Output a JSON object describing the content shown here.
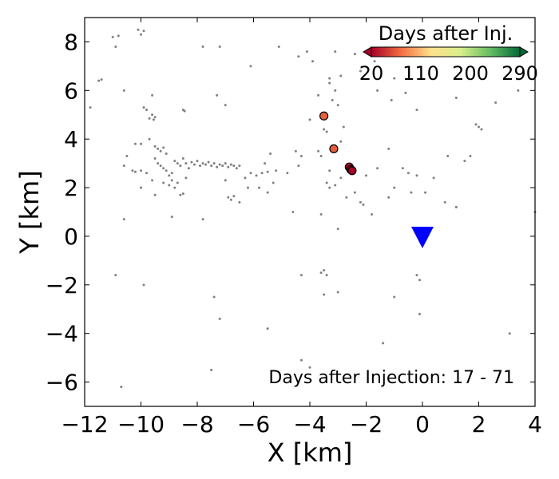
{
  "chart_data": {
    "type": "scatter",
    "xlabel": "X [km]",
    "ylabel": "Y [km]",
    "xlim": [
      -12,
      4
    ],
    "ylim": [
      -7,
      9
    ],
    "x_ticks": [
      -12,
      -10,
      -8,
      -6,
      -4,
      -2,
      0,
      2,
      4
    ],
    "x_tick_labels": [
      "−12",
      "−10",
      "−8",
      "−6",
      "−4",
      "−2",
      "0",
      "2",
      "4"
    ],
    "y_ticks": [
      -6,
      -4,
      -2,
      0,
      2,
      4,
      6,
      8
    ],
    "y_tick_labels": [
      "−6",
      "−4",
      "−2",
      "0",
      "2",
      "4",
      "6",
      "8"
    ],
    "grid": false,
    "annotation": "Days after Injection: 17 - 71",
    "colorbar": {
      "title": "Days after Inj.",
      "colormap": "RdYlGn",
      "range": [
        20,
        290
      ],
      "tick_labels": [
        "20",
        "110",
        "200",
        "290"
      ],
      "tick_values": [
        20,
        110,
        200,
        290
      ],
      "placement": "top-right",
      "colors": [
        "#a50026",
        "#f46d43",
        "#fee08b",
        "#d9ef8b",
        "#66bd63",
        "#006837"
      ]
    },
    "station": {
      "x": 0.0,
      "y": 0.0,
      "marker": "inverted-triangle",
      "color": "#0000ff"
    },
    "background_color": "#808080",
    "highlighted_events": [
      {
        "x": -3.5,
        "y": 4.95,
        "days": 55,
        "color": "#e8603c"
      },
      {
        "x": -3.15,
        "y": 3.6,
        "days": 62,
        "color": "#e45d3a"
      },
      {
        "x": -2.6,
        "y": 2.85,
        "days": 25,
        "color": "#b5122b"
      },
      {
        "x": -2.55,
        "y": 2.75,
        "days": 22,
        "color": "#a50026"
      },
      {
        "x": -2.5,
        "y": 2.7,
        "days": 20,
        "color": "#a50026"
      }
    ],
    "background_events": [
      [
        -11.0,
        8.2
      ],
      [
        -10.8,
        8.25
      ],
      [
        -10.9,
        7.8
      ],
      [
        -10.1,
        8.5
      ],
      [
        -9.9,
        8.45
      ],
      [
        -10.0,
        8.3
      ],
      [
        -11.4,
        6.45
      ],
      [
        -11.5,
        6.4
      ],
      [
        -10.6,
        6.0
      ],
      [
        -9.6,
        5.8
      ],
      [
        -11.8,
        5.3
      ],
      [
        -9.9,
        5.3
      ],
      [
        -9.8,
        5.2
      ],
      [
        -9.6,
        5.0
      ],
      [
        -9.5,
        4.9
      ],
      [
        -9.7,
        4.85
      ],
      [
        -9.55,
        4.8
      ],
      [
        -8.5,
        5.2
      ],
      [
        -8.45,
        5.15
      ],
      [
        -7.8,
        7.8
      ],
      [
        -7.2,
        7.8
      ],
      [
        -7.3,
        5.8
      ],
      [
        -7.0,
        5.4
      ],
      [
        -6.1,
        7.0
      ],
      [
        -5.1,
        7.8
      ],
      [
        -4.4,
        7.4
      ],
      [
        -9.7,
        4.0
      ],
      [
        -10.2,
        3.8
      ],
      [
        -10.0,
        3.8
      ],
      [
        -10.5,
        3.3
      ],
      [
        -10.6,
        2.9
      ],
      [
        -10.3,
        2.7
      ],
      [
        -10.2,
        2.65
      ],
      [
        -10.0,
        2.7
      ],
      [
        -9.8,
        2.6
      ],
      [
        -9.5,
        3.7
      ],
      [
        -9.4,
        3.6
      ],
      [
        -9.3,
        3.5
      ],
      [
        -9.2,
        3.65
      ],
      [
        -9.1,
        3.4
      ],
      [
        -9.5,
        3.2
      ],
      [
        -9.4,
        3.0
      ],
      [
        -9.3,
        2.9
      ],
      [
        -9.2,
        2.8
      ],
      [
        -9.1,
        2.7
      ],
      [
        -9.0,
        2.5
      ],
      [
        -8.9,
        2.6
      ],
      [
        -8.8,
        3.1
      ],
      [
        -8.7,
        3.0
      ],
      [
        -8.6,
        2.9
      ],
      [
        -8.5,
        3.2
      ],
      [
        -8.4,
        3.0
      ],
      [
        -8.3,
        2.8
      ],
      [
        -8.2,
        3.05
      ],
      [
        -8.1,
        2.95
      ],
      [
        -8.0,
        3.1
      ],
      [
        -7.9,
        2.9
      ],
      [
        -7.8,
        3.0
      ],
      [
        -7.7,
        2.95
      ],
      [
        -7.6,
        3.05
      ],
      [
        -7.5,
        2.9
      ],
      [
        -7.4,
        3.0
      ],
      [
        -7.3,
        2.85
      ],
      [
        -7.2,
        2.95
      ],
      [
        -7.1,
        2.9
      ],
      [
        -7.0,
        3.0
      ],
      [
        -6.9,
        2.85
      ],
      [
        -6.8,
        2.95
      ],
      [
        -6.7,
        2.9
      ],
      [
        -6.6,
        2.8
      ],
      [
        -6.5,
        2.9
      ],
      [
        -8.9,
        2.3
      ],
      [
        -8.8,
        2.0
      ],
      [
        -8.7,
        2.2
      ],
      [
        -8.4,
        2.4
      ],
      [
        -9.6,
        2.3
      ],
      [
        -9.2,
        2.2
      ],
      [
        -9.0,
        2.1
      ],
      [
        -8.6,
        1.7
      ],
      [
        -8.5,
        1.75
      ],
      [
        -10.0,
        2.0
      ],
      [
        -9.5,
        1.7
      ],
      [
        -7.0,
        2.3
      ],
      [
        -6.9,
        1.6
      ],
      [
        -6.8,
        1.5
      ],
      [
        -6.7,
        1.65
      ],
      [
        -6.5,
        1.4
      ],
      [
        -6.3,
        2.4
      ],
      [
        -6.1,
        2.6
      ],
      [
        -5.9,
        2.5
      ],
      [
        -5.7,
        2.6
      ],
      [
        -5.5,
        2.65
      ],
      [
        -5.3,
        2.2
      ],
      [
        -5.2,
        2.7
      ],
      [
        -5.6,
        3.0
      ],
      [
        -5.4,
        3.4
      ],
      [
        -6.2,
        2.0
      ],
      [
        -5.8,
        2.0
      ],
      [
        -5.5,
        1.8
      ],
      [
        -4.8,
        2.6
      ],
      [
        -4.4,
        2.9
      ],
      [
        -4.3,
        3.3
      ],
      [
        -4.5,
        3.5
      ],
      [
        -3.6,
        3.3
      ],
      [
        -3.7,
        3.5
      ],
      [
        -3.3,
        2.7
      ],
      [
        -3.4,
        2.2
      ],
      [
        -3.3,
        2.0
      ],
      [
        -3.1,
        2.1
      ],
      [
        -2.9,
        2.4
      ],
      [
        -2.7,
        1.6
      ],
      [
        -2.2,
        1.4
      ],
      [
        -2.0,
        2.5
      ],
      [
        -1.6,
        2.8
      ],
      [
        -1.2,
        1.6
      ],
      [
        -1.0,
        2.0
      ],
      [
        -0.5,
        2.6
      ],
      [
        -0.7,
        2.8
      ],
      [
        -0.4,
        1.8
      ],
      [
        -0.2,
        2.5
      ],
      [
        0.1,
        1.8
      ],
      [
        0.4,
        2.4
      ],
      [
        0.8,
        1.4
      ],
      [
        0.9,
        3.3
      ],
      [
        1.2,
        1.2
      ],
      [
        1.5,
        3.1
      ],
      [
        1.7,
        3.3
      ],
      [
        2.1,
        4.4
      ],
      [
        1.9,
        4.6
      ],
      [
        2.0,
        4.5
      ],
      [
        1.2,
        5.7
      ],
      [
        -0.2,
        5.2
      ],
      [
        -1.1,
        5.6
      ],
      [
        -1.0,
        6.5
      ],
      [
        -0.6,
        5.9
      ],
      [
        -1.6,
        7.7
      ],
      [
        -1.7,
        7.2
      ],
      [
        -2.2,
        6.8
      ],
      [
        -1.6,
        6.0
      ],
      [
        -2.4,
        7.5
      ],
      [
        -2.9,
        6.6
      ],
      [
        -3.1,
        7.6
      ],
      [
        -3.3,
        6.3
      ],
      [
        -3.1,
        6.0
      ],
      [
        -3.2,
        5.6
      ],
      [
        -3.0,
        5.4
      ],
      [
        -3.7,
        5.8
      ],
      [
        -4.1,
        7.6
      ],
      [
        -3.9,
        7.2
      ],
      [
        -3.3,
        6.5
      ],
      [
        -3.5,
        4.4
      ],
      [
        -3.4,
        4.3
      ],
      [
        -2.9,
        3.9
      ],
      [
        -4.0,
        4.8
      ],
      [
        -2.8,
        4.5
      ],
      [
        -1.2,
        3.6
      ],
      [
        -2.4,
        1.8
      ],
      [
        -2.1,
        1.3
      ],
      [
        -1.8,
        0.9
      ],
      [
        -3.6,
        0.9
      ],
      [
        -3.0,
        0.3
      ],
      [
        -4.6,
        1.0
      ],
      [
        -4.3,
        -1.6
      ],
      [
        -3.6,
        -1.5
      ],
      [
        -3.5,
        -1.4
      ],
      [
        -3.4,
        -1.6
      ],
      [
        -3.0,
        -2.3
      ],
      [
        -3.5,
        -2.4
      ],
      [
        -0.2,
        -1.6
      ],
      [
        -0.1,
        -1.8
      ],
      [
        -1.0,
        -2.5
      ],
      [
        -0.1,
        -3.2
      ],
      [
        -1.4,
        -4.4
      ],
      [
        -4.0,
        -5.4
      ],
      [
        -4.3,
        -5.1
      ],
      [
        -5.5,
        -3.8
      ],
      [
        -7.4,
        -2.5
      ],
      [
        -7.2,
        -3.4
      ],
      [
        -7.5,
        -5.5
      ],
      [
        -9.9,
        -2.0
      ],
      [
        -10.9,
        -1.6
      ],
      [
        -10.6,
        0.7
      ],
      [
        -10.7,
        -6.2
      ],
      [
        -7.8,
        0.7
      ],
      [
        -8.9,
        0.8
      ],
      [
        3.1,
        -4.0
      ],
      [
        2.6,
        5.5
      ],
      [
        3.4,
        6.0
      ],
      [
        4.0,
        1.0
      ],
      [
        1.2,
        1.2
      ]
    ]
  }
}
